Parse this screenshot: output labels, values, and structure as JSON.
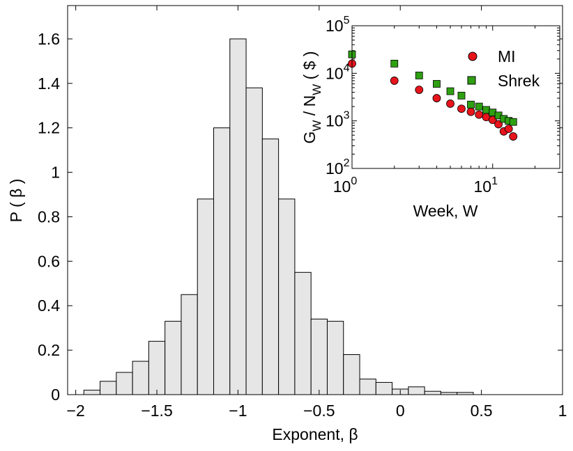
{
  "chart_data": [
    {
      "type": "bar",
      "title": "",
      "xlabel": "Exponent, β",
      "ylabel": "P ( β )",
      "xlim": [
        -2.05,
        1.0
      ],
      "ylim": [
        0,
        1.75
      ],
      "bin_width": 0.1,
      "bin_left_edges": [
        -1.95,
        -1.85,
        -1.75,
        -1.65,
        -1.55,
        -1.45,
        -1.35,
        -1.25,
        -1.15,
        -1.05,
        -0.95,
        -0.85,
        -0.75,
        -0.65,
        -0.55,
        -0.45,
        -0.35,
        -0.25,
        -0.15,
        -0.05,
        0.05,
        0.15,
        0.25,
        0.35
      ],
      "values": [
        0.02,
        0.06,
        0.1,
        0.15,
        0.24,
        0.33,
        0.45,
        0.88,
        1.2,
        1.6,
        1.38,
        1.15,
        0.88,
        0.55,
        0.34,
        0.33,
        0.18,
        0.07,
        0.055,
        0.025,
        0.035,
        0.015,
        0.01,
        0.01
      ],
      "xticks": [
        -2,
        -1.5,
        -1,
        -0.5,
        0,
        0.5,
        1
      ],
      "xtick_labels": [
        "−2",
        "−1.5",
        "−1",
        "−0.5",
        "0",
        "0.5",
        "1"
      ],
      "yticks": [
        0,
        0.2,
        0.4,
        0.6,
        0.8,
        1,
        1.2,
        1.4,
        1.6
      ],
      "ytick_labels": [
        "0",
        "0.2",
        "0.4",
        "0.6",
        "0.8",
        "1",
        "1.2",
        "1.4",
        "1.6"
      ],
      "bar_color": "#e6e6e6",
      "edge_color": "#000000"
    },
    {
      "type": "scatter",
      "title": "",
      "xlabel": "Week, W",
      "ylabel_parts": {
        "g": "G",
        "g_sub": "W",
        "mid": " / N",
        "n_sub": "W",
        "tail": " ( $ )"
      },
      "xscale": "log",
      "yscale": "log",
      "xlim": [
        1,
        30
      ],
      "ylim": [
        100,
        100000
      ],
      "xticks": [
        1,
        10
      ],
      "xtick_base": [
        "10",
        "10"
      ],
      "xtick_exp": [
        "0",
        "1"
      ],
      "yticks": [
        100,
        1000,
        10000,
        100000
      ],
      "ytick_base": [
        "10",
        "10",
        "10",
        "10"
      ],
      "ytick_exp": [
        "2",
        "3",
        "4",
        "5"
      ],
      "legend_position": "top-right",
      "series": [
        {
          "name": "MI",
          "marker": "circle",
          "color": "#e8141c",
          "x": [
            1,
            2,
            3,
            4,
            5,
            6,
            7,
            8,
            9,
            10,
            11,
            12,
            13,
            14
          ],
          "y": [
            16000,
            7000,
            4500,
            3000,
            2300,
            1800,
            1550,
            1350,
            1200,
            1050,
            850,
            600,
            680,
            470
          ]
        },
        {
          "name": "Shrek",
          "marker": "square",
          "color": "#2ea012",
          "x": [
            1,
            2,
            3,
            4,
            5,
            6,
            7,
            8,
            9,
            10,
            11,
            12,
            13,
            14
          ],
          "y": [
            25000,
            16000,
            9000,
            6000,
            4200,
            3400,
            2200,
            2000,
            1700,
            1500,
            1300,
            1100,
            1000,
            950
          ]
        }
      ]
    }
  ]
}
